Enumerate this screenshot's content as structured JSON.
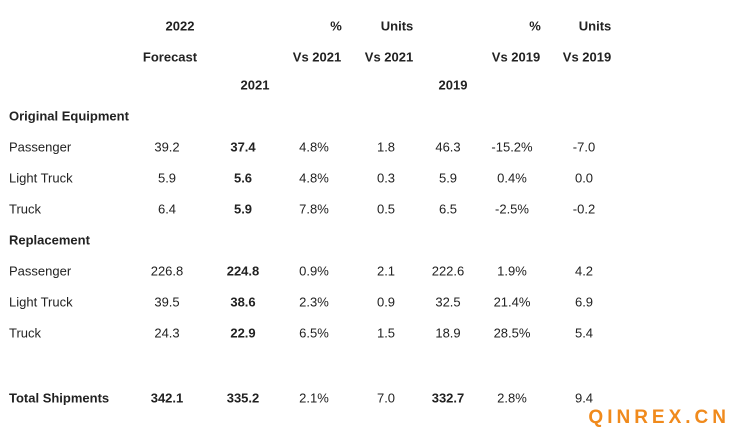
{
  "header": {
    "line1": [
      "2022",
      "%",
      "Units",
      "%",
      "Units"
    ],
    "line2": [
      "Forecast",
      "Vs 2021",
      "Vs 2021",
      "Vs 2019",
      "Vs 2019"
    ],
    "line3": [
      "2021",
      "2019"
    ]
  },
  "sections": [
    {
      "title": "Original Equipment",
      "rows": [
        {
          "label": "Passenger",
          "values": [
            "39.2",
            "37.4",
            "4.8%",
            "1.8",
            "46.3",
            "-15.2%",
            "-7.0"
          ]
        },
        {
          "label": "Light Truck",
          "values": [
            "5.9",
            "5.6",
            "4.8%",
            "0.3",
            "5.9",
            "0.4%",
            "0.0"
          ]
        },
        {
          "label": "Truck",
          "values": [
            "6.4",
            "5.9",
            "7.8%",
            "0.5",
            "6.5",
            "-2.5%",
            "-0.2"
          ]
        }
      ]
    },
    {
      "title": "Replacement",
      "rows": [
        {
          "label": "Passenger",
          "values": [
            "226.8",
            "224.8",
            "0.9%",
            "2.1",
            "222.6",
            "1.9%",
            "4.2"
          ]
        },
        {
          "label": "Light Truck",
          "values": [
            "39.5",
            "38.6",
            "2.3%",
            "0.9",
            "32.5",
            "21.4%",
            "6.9"
          ]
        },
        {
          "label": "Truck",
          "values": [
            "24.3",
            "22.9",
            "6.5%",
            "1.5",
            "18.9",
            "28.5%",
            "5.4"
          ]
        }
      ]
    }
  ],
  "total": {
    "label": "Total Shipments",
    "values": [
      "342.1",
      "335.2",
      "2.1%",
      "7.0",
      "332.7",
      "2.8%",
      "9.4"
    ]
  },
  "watermark": "QINREX.CN"
}
